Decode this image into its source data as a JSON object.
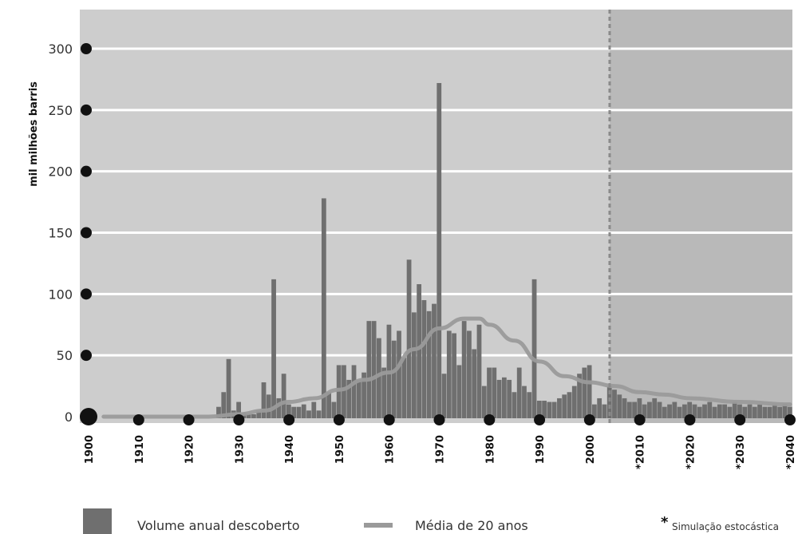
{
  "chart_data": {
    "type": "bar",
    "ylabel": "mil milhões barris",
    "ylim": [
      0,
      330
    ],
    "xlim": [
      1900,
      2040
    ],
    "y_ticks": [
      0,
      50,
      100,
      150,
      200,
      250,
      300
    ],
    "x_ticks": [
      {
        "value": 1900,
        "label": "1900"
      },
      {
        "value": 1910,
        "label": "1910"
      },
      {
        "value": 1920,
        "label": "1920"
      },
      {
        "value": 1930,
        "label": "1930"
      },
      {
        "value": 1940,
        "label": "1940"
      },
      {
        "value": 1950,
        "label": "1950"
      },
      {
        "value": 1960,
        "label": "1960"
      },
      {
        "value": 1970,
        "label": "1970"
      },
      {
        "value": 1980,
        "label": "1980"
      },
      {
        "value": 1990,
        "label": "1990"
      },
      {
        "value": 2000,
        "label": "2000"
      },
      {
        "value": 2010,
        "label": "*2010"
      },
      {
        "value": 2020,
        "label": "*2020"
      },
      {
        "value": 2030,
        "label": "*2030"
      },
      {
        "value": 2040,
        "label": "*2040"
      }
    ],
    "simulation_start": 2004,
    "grid": "horizontal",
    "legend_position": "bottom",
    "colors": {
      "background": "#cdcdcd",
      "simulation_background": "#b9b9b9",
      "bars": "#6f6f6f",
      "average_line": "#9a9a9a",
      "gridline": "#ffffff",
      "divider": "#8a8a8a"
    },
    "series": [
      {
        "name": "Volume anual descoberto",
        "type": "bar",
        "x": [
          1926,
          1927,
          1928,
          1929,
          1930,
          1931,
          1932,
          1933,
          1934,
          1935,
          1936,
          1937,
          1938,
          1939,
          1940,
          1941,
          1942,
          1943,
          1944,
          1945,
          1946,
          1947,
          1948,
          1949,
          1950,
          1951,
          1952,
          1953,
          1954,
          1955,
          1956,
          1957,
          1958,
          1959,
          1960,
          1961,
          1962,
          1963,
          1964,
          1965,
          1966,
          1967,
          1968,
          1969,
          1970,
          1971,
          1972,
          1973,
          1974,
          1975,
          1976,
          1977,
          1978,
          1979,
          1980,
          1981,
          1982,
          1983,
          1984,
          1985,
          1986,
          1987,
          1988,
          1989,
          1990,
          1991,
          1992,
          1993,
          1994,
          1995,
          1996,
          1997,
          1998,
          1999,
          2000,
          2001,
          2002,
          2003,
          2004,
          2005,
          2006,
          2007,
          2008,
          2009,
          2010,
          2011,
          2012,
          2013,
          2014,
          2015,
          2016,
          2017,
          2018,
          2019,
          2020,
          2021,
          2022,
          2023,
          2024,
          2025,
          2026,
          2027,
          2028,
          2029,
          2030,
          2031,
          2032,
          2033,
          2034,
          2035,
          2036,
          2037,
          2038,
          2039,
          2040
        ],
        "values": [
          8,
          20,
          47,
          5,
          12,
          3,
          2,
          2,
          5,
          28,
          18,
          112,
          15,
          35,
          10,
          8,
          8,
          10,
          5,
          12,
          5,
          178,
          20,
          12,
          42,
          42,
          30,
          42,
          30,
          36,
          78,
          78,
          64,
          40,
          75,
          62,
          70,
          48,
          128,
          85,
          108,
          95,
          86,
          92,
          272,
          35,
          70,
          68,
          42,
          78,
          70,
          55,
          75,
          25,
          40,
          40,
          30,
          32,
          30,
          20,
          40,
          25,
          20,
          112,
          13,
          13,
          12,
          12,
          15,
          18,
          20,
          25,
          35,
          40,
          42,
          10,
          15,
          10,
          25,
          22,
          18,
          15,
          12,
          12,
          15,
          10,
          12,
          15,
          12,
          8,
          10,
          12,
          8,
          10,
          12,
          10,
          8,
          10,
          12,
          8,
          10,
          10,
          8,
          12,
          10,
          8,
          10,
          8,
          10,
          8,
          8,
          10,
          8,
          10,
          8
        ]
      },
      {
        "name": "Média de 20 anos",
        "type": "line",
        "x": [
          1903,
          1924,
          1930,
          1935,
          1940,
          1945,
          1950,
          1955,
          1960,
          1965,
          1970,
          1975,
          1978,
          1980,
          1985,
          1990,
          1995,
          2000,
          2005,
          2010,
          2015,
          2020,
          2030,
          2040
        ],
        "values": [
          0,
          0,
          2,
          5,
          12,
          15,
          22,
          30,
          36,
          55,
          72,
          80,
          80,
          75,
          62,
          45,
          33,
          28,
          25,
          20,
          18,
          15,
          12,
          10
        ]
      }
    ],
    "legend_note": "Simulação estocástica"
  }
}
